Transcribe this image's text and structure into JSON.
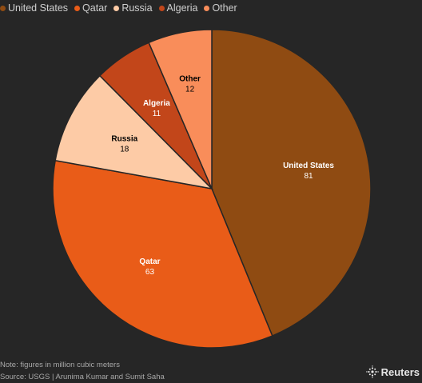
{
  "chart_data": {
    "type": "pie",
    "title": "",
    "categories": [
      "United States",
      "Qatar",
      "Russia",
      "Algeria",
      "Other"
    ],
    "values": [
      81,
      63,
      18,
      11,
      12
    ],
    "colors": [
      "#8f4b12",
      "#e95c18",
      "#fdcba6",
      "#c2461a",
      "#f98d5a"
    ],
    "label_colors": [
      "#ffffff",
      "#ffffff",
      "#000000",
      "#ffffff",
      "#000000"
    ],
    "legend_position": "top-left",
    "start_angle_deg": 0,
    "direction": "clockwise"
  },
  "legend": {
    "items": [
      {
        "label": "United States",
        "color": "#8f4b12"
      },
      {
        "label": "Qatar",
        "color": "#e95c18"
      },
      {
        "label": "Russia",
        "color": "#fdcba6"
      },
      {
        "label": "Algeria",
        "color": "#c2461a"
      },
      {
        "label": "Other",
        "color": "#f98d5a"
      }
    ]
  },
  "footer": {
    "note": "Note: figures in million cubic meters",
    "source": "Source: USGS | Arunima Kumar and Sumit Saha",
    "logo_text": "Reuters",
    "logo_icon": "reuters-dots-icon"
  }
}
